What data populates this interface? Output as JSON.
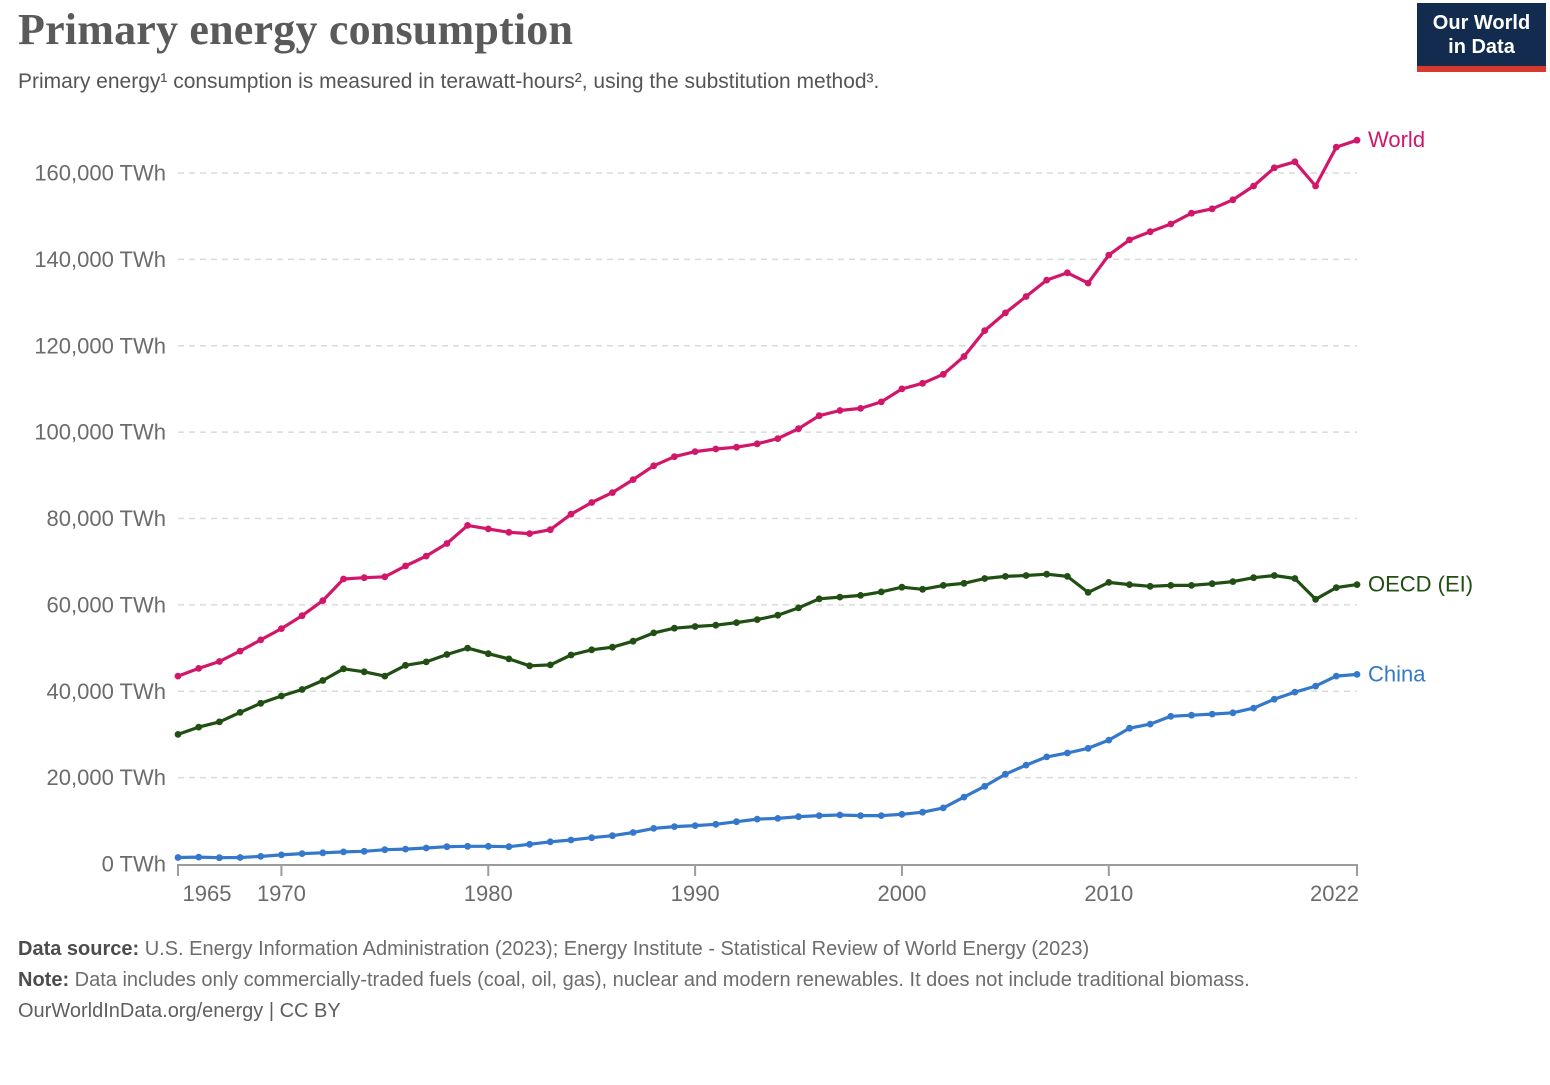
{
  "header": {
    "title": "Primary energy consumption",
    "subtitle": "Primary energy¹ consumption is measured in terawatt-hours², using the substitution method³.",
    "logo": {
      "line1": "Our World",
      "line2": "in Data",
      "bg_color": "#122b4e",
      "accent_color": "#d8392f"
    }
  },
  "chart_data": {
    "type": "line",
    "title": "Primary energy consumption",
    "xlabel": "",
    "ylabel": "TWh",
    "xlim": [
      1965,
      2022
    ],
    "ylim": [
      0,
      160000
    ],
    "grid": true,
    "legend_position": "right-end-labels",
    "x": [
      1965,
      1966,
      1967,
      1968,
      1969,
      1970,
      1971,
      1972,
      1973,
      1974,
      1975,
      1976,
      1977,
      1978,
      1979,
      1980,
      1981,
      1982,
      1983,
      1984,
      1985,
      1986,
      1987,
      1988,
      1989,
      1990,
      1991,
      1992,
      1993,
      1994,
      1995,
      1996,
      1997,
      1998,
      1999,
      2000,
      2001,
      2002,
      2003,
      2004,
      2005,
      2006,
      2007,
      2008,
      2009,
      2010,
      2011,
      2012,
      2013,
      2014,
      2015,
      2016,
      2017,
      2018,
      2019,
      2020,
      2021,
      2022
    ],
    "series": [
      {
        "name": "World",
        "color": "#d2166a",
        "values": [
          43500,
          45300,
          46900,
          49300,
          51900,
          54500,
          57500,
          61000,
          66000,
          66300,
          66500,
          69000,
          71300,
          74200,
          78400,
          77600,
          76800,
          76500,
          77400,
          81000,
          83700,
          86000,
          89000,
          92200,
          94300,
          95500,
          96100,
          96500,
          97300,
          98500,
          100800,
          103800,
          105000,
          105500,
          107000,
          110000,
          111300,
          113400,
          117500,
          123500,
          127600,
          131400,
          135200,
          136900,
          134500,
          141000,
          144500,
          146400,
          148200,
          150700,
          151700,
          153800,
          157000,
          161200,
          162600,
          157000,
          166000,
          167600
        ]
      },
      {
        "name": "OECD (EI)",
        "color": "#204e13",
        "values": [
          30000,
          31700,
          32900,
          35100,
          37200,
          38900,
          40400,
          42500,
          45200,
          44500,
          43500,
          46000,
          46800,
          48500,
          50000,
          48700,
          47500,
          45900,
          46100,
          48400,
          49600,
          50200,
          51600,
          53500,
          54600,
          55000,
          55300,
          55900,
          56600,
          57600,
          59300,
          61400,
          61800,
          62200,
          63000,
          64100,
          63600,
          64500,
          65000,
          66100,
          66600,
          66800,
          67100,
          66600,
          62900,
          65200,
          64700,
          64300,
          64500,
          64500,
          64900,
          65400,
          66300,
          66800,
          66100,
          61300,
          64000,
          64700
        ]
      },
      {
        "name": "China",
        "color": "#3478cb",
        "values": [
          1500,
          1600,
          1450,
          1500,
          1750,
          2100,
          2400,
          2600,
          2800,
          2950,
          3300,
          3450,
          3700,
          4000,
          4100,
          4100,
          4000,
          4550,
          5150,
          5550,
          6100,
          6550,
          7300,
          8250,
          8650,
          8900,
          9200,
          9800,
          10400,
          10550,
          10950,
          11200,
          11350,
          11200,
          11200,
          11500,
          12000,
          13000,
          15500,
          18000,
          20800,
          22900,
          24800,
          25700,
          26800,
          28700,
          31450,
          32400,
          34200,
          34450,
          34700,
          35000,
          36100,
          38150,
          39800,
          41200,
          43500,
          43900
        ]
      }
    ],
    "x_ticks": [
      {
        "year": 1965,
        "label": "1965"
      },
      {
        "year": 1970,
        "label": "1970"
      },
      {
        "year": 1980,
        "label": "1980"
      },
      {
        "year": 1990,
        "label": "1990"
      },
      {
        "year": 2000,
        "label": "2000"
      },
      {
        "year": 2010,
        "label": "2010"
      },
      {
        "year": 2022,
        "label": "2022"
      }
    ],
    "y_ticks": [
      {
        "value": 0,
        "label": "0 TWh"
      },
      {
        "value": 20000,
        "label": "20,000 TWh"
      },
      {
        "value": 40000,
        "label": "40,000 TWh"
      },
      {
        "value": 60000,
        "label": "60,000 TWh"
      },
      {
        "value": 80000,
        "label": "80,000 TWh"
      },
      {
        "value": 100000,
        "label": "100,000 TWh"
      },
      {
        "value": 120000,
        "label": "120,000 TWh"
      },
      {
        "value": 140000,
        "label": "140,000 TWh"
      },
      {
        "value": 160000,
        "label": "160,000 TWh"
      }
    ]
  },
  "footer": {
    "data_source_label": "Data source:",
    "data_source_text": "U.S. Energy Information Administration (2023); Energy Institute - Statistical Review of World Energy (2023)",
    "note_label": "Note:",
    "note_text": "Data includes only commercially-traded fuels (coal, oil, gas), nuclear and modern renewables. It does not include traditional biomass.",
    "citation": "OurWorldInData.org/energy | CC BY"
  },
  "colors": {
    "grid": "#dadada",
    "axis": "#9c9c9c",
    "tick_text": "#6b6b6b"
  }
}
